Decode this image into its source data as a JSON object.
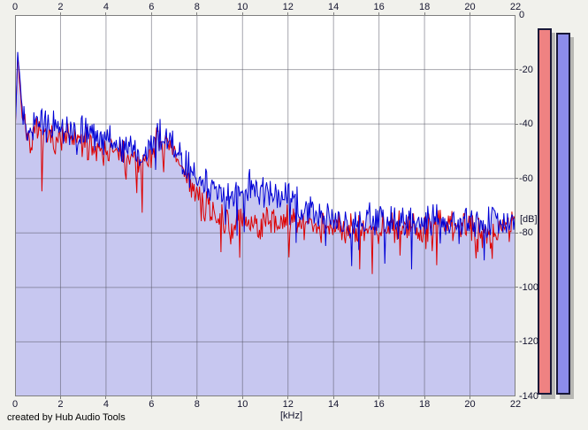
{
  "window": {
    "credit": "created by Hub Audio Tools"
  },
  "axes": {
    "x_unit_label": "[kHz]",
    "y_unit_label": "[dB]",
    "x_tick_labels": [
      "0",
      "2",
      "4",
      "6",
      "8",
      "10",
      "12",
      "14",
      "16",
      "18",
      "20",
      "22"
    ],
    "y_tick_labels": [
      "0",
      "-20",
      "-40",
      "-60",
      "-80",
      "-100",
      "-120",
      "-140"
    ]
  },
  "chart_data": {
    "type": "line",
    "title": "",
    "xlabel": "[kHz]",
    "ylabel": "[dB]",
    "xlim": [
      0,
      22
    ],
    "ylim": [
      -140,
      0
    ],
    "x_tick_step_khz": 2,
    "y_tick_step_db": 20,
    "grid": true,
    "legend": "none",
    "note": "Noisy audio magnitude spectrum; two overlaid traces; lavender area filled under blue trace; sharp peak near 0 kHz reaching about -13 dB; broad bump near 6.5 kHz; blue rides above red between 8-13 kHz; both flatten near -76/-78 dB from 14-22 kHz with downward noise spikes to about -100 dB.",
    "series": [
      {
        "name": "spectrum-trace-red",
        "color": "#dd0000",
        "seed": 7,
        "noise_peak_db": 7,
        "envelope_khz": [
          0,
          0.12,
          0.3,
          0.6,
          1,
          1.5,
          2,
          2.5,
          3,
          3.5,
          4,
          4.5,
          5,
          5.6,
          6.3,
          6.8,
          7.5,
          8.2,
          9,
          9.6,
          10.3,
          11,
          11.8,
          12.4,
          13,
          13.6,
          14.2,
          15,
          16,
          17,
          18,
          19,
          20,
          21,
          22
        ],
        "envelope_db": [
          -44,
          -15,
          -36,
          -46,
          -44,
          -45,
          -45,
          -46,
          -47,
          -48,
          -49,
          -51,
          -53,
          -55,
          -47,
          -49,
          -58,
          -70,
          -75,
          -76,
          -76,
          -76,
          -76,
          -76,
          -77,
          -78,
          -78,
          -78,
          -78,
          -77,
          -78,
          -77,
          -78,
          -78,
          -78
        ]
      },
      {
        "name": "spectrum-trace-blue",
        "color": "#0000d6",
        "area_fill": "#c7c7f0",
        "seed": 13,
        "noise_peak_db": 7,
        "envelope_khz": [
          0,
          0.12,
          0.3,
          0.6,
          1,
          1.5,
          2,
          2.5,
          3,
          3.5,
          4,
          4.5,
          5,
          5.6,
          6.3,
          6.8,
          7.5,
          8.2,
          9,
          9.6,
          10.3,
          11,
          11.8,
          12.4,
          13,
          13.6,
          14.2,
          15,
          16,
          17,
          18,
          19,
          20,
          21,
          22
        ],
        "envelope_db": [
          -42,
          -14,
          -32,
          -43,
          -40,
          -41,
          -42,
          -42,
          -43,
          -44,
          -45,
          -47,
          -49,
          -52,
          -44,
          -46,
          -54,
          -62,
          -66,
          -67,
          -63,
          -65,
          -66,
          -69,
          -72,
          -74,
          -76,
          -76,
          -75,
          -76,
          -75,
          -76,
          -75,
          -75,
          -76
        ]
      }
    ]
  },
  "meters": {
    "red": {
      "color": "#ef8282",
      "level_db": -4.8
    },
    "blue": {
      "color": "#8c8cea",
      "level_db": -6.6
    }
  },
  "colors": {
    "background": "#f1f1ec",
    "plot_background": "#ffffff",
    "grid_line": "#989898",
    "plot_border": "#7f7f7f",
    "tick_label": "#14142e"
  }
}
